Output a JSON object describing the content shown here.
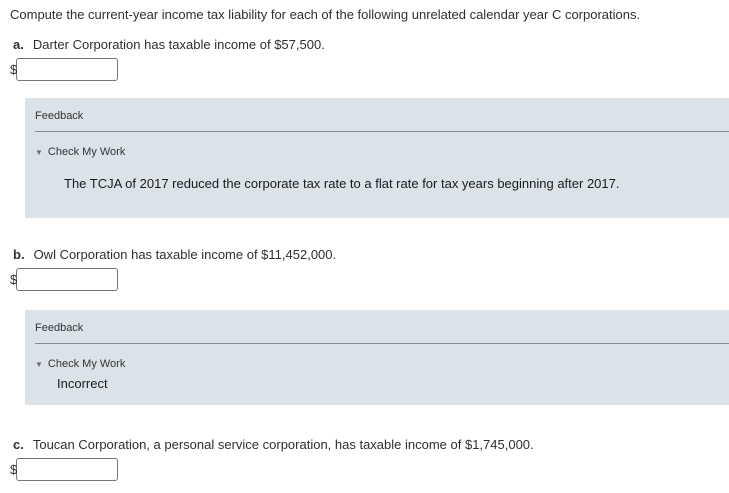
{
  "intro": "Compute the current-year income tax liability for each of the following unrelated calendar year C corporations.",
  "currency_symbol": "$",
  "sections": [
    {
      "letter": "a.",
      "prompt": "Darter Corporation has taxable income of $57,500.",
      "answer_value": "",
      "feedback": {
        "title": "Feedback",
        "check_label": "Check My Work",
        "message": "The TCJA of 2017 reduced the corporate tax rate to a flat rate for tax years beginning after 2017."
      }
    },
    {
      "letter": "b.",
      "prompt": "Owl Corporation has taxable income of $11,452,000.",
      "answer_value": "",
      "feedback": {
        "title": "Feedback",
        "check_label": "Check My Work",
        "status": "Incorrect"
      }
    },
    {
      "letter": "c.",
      "prompt": "Toucan Corporation, a personal service corporation, has taxable income of $1,745,000.",
      "answer_value": ""
    }
  ],
  "icons": {
    "check_my_work_toggle": "collapse-triangle-icon",
    "triangle_glyph": "▼"
  },
  "colors": {
    "feedback_background": "#dce3e8",
    "divider": "#8a8a8a",
    "input_border": "#767676",
    "text": "#333333"
  }
}
